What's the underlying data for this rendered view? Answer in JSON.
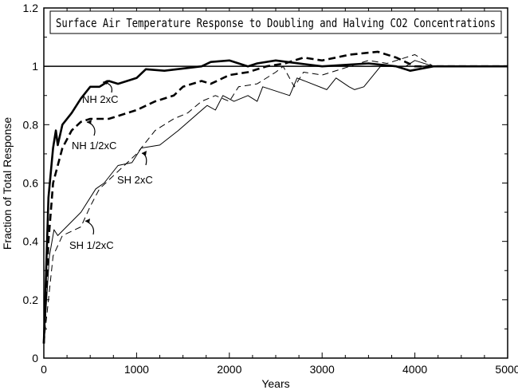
{
  "chart_data": {
    "type": "line",
    "title": "Surface Air Temperature Response to Doubling and Halving CO2 Concentrations",
    "xlabel": "Years",
    "ylabel": "Fraction of Total Response",
    "xlim": [
      0,
      5000
    ],
    "ylim": [
      0,
      1.2
    ],
    "xticks": [
      "0",
      "1000",
      "2000",
      "3000",
      "4000",
      "5000"
    ],
    "yticks": [
      "0",
      "0.2",
      "0.4",
      "0.6",
      "0.8",
      "1",
      "1.2"
    ],
    "reference_line": 1.0,
    "grid": false,
    "legend": "inline annotations",
    "series": [
      {
        "name": "NH 2xC",
        "style": "thick-solid",
        "x": [
          0,
          50,
          100,
          130,
          150,
          200,
          300,
          400,
          500,
          600,
          700,
          800,
          1000,
          1100,
          1300,
          1700,
          1800,
          2000,
          2200,
          2300,
          2500,
          3000,
          3500,
          3800,
          3950,
          4200,
          4600,
          5000
        ],
        "y": [
          0.05,
          0.55,
          0.72,
          0.78,
          0.73,
          0.8,
          0.84,
          0.89,
          0.93,
          0.93,
          0.95,
          0.94,
          0.96,
          0.99,
          0.985,
          1.0,
          1.015,
          1.02,
          1.0,
          1.01,
          1.02,
          1.0,
          1.01,
          1.0,
          0.985,
          1.0,
          1.0,
          1.0
        ]
      },
      {
        "name": "NH 1/2xC",
        "style": "thick-dashed",
        "x": [
          0,
          50,
          100,
          200,
          300,
          400,
          500,
          700,
          900,
          1000,
          1200,
          1400,
          1500,
          1700,
          1800,
          2000,
          2200,
          2400,
          2600,
          2800,
          3000,
          3300,
          3600,
          3800,
          4000,
          4500,
          5000
        ],
        "y": [
          0.05,
          0.4,
          0.6,
          0.72,
          0.78,
          0.81,
          0.82,
          0.82,
          0.84,
          0.85,
          0.88,
          0.9,
          0.93,
          0.95,
          0.94,
          0.97,
          0.98,
          1.0,
          1.01,
          1.03,
          1.02,
          1.04,
          1.05,
          1.03,
          1.0,
          1.0,
          1.0
        ]
      },
      {
        "name": "SH 2xC",
        "style": "thin-solid",
        "x": [
          0,
          60,
          110,
          150,
          400,
          560,
          650,
          800,
          950,
          1050,
          1250,
          1450,
          1760,
          1850,
          1930,
          2050,
          2200,
          2300,
          2360,
          2650,
          2730,
          3050,
          3150,
          3290,
          3350,
          3450,
          3630,
          3900,
          4000,
          4200,
          5000
        ],
        "y": [
          0.05,
          0.35,
          0.44,
          0.42,
          0.5,
          0.58,
          0.6,
          0.66,
          0.67,
          0.72,
          0.73,
          0.78,
          0.866,
          0.85,
          0.9,
          0.88,
          0.9,
          0.88,
          0.93,
          0.9,
          0.96,
          0.92,
          0.96,
          0.93,
          0.92,
          0.93,
          1.0,
          1.0,
          1.02,
          1.0,
          1.0
        ]
      },
      {
        "name": "SH 1/2xC",
        "style": "thin-dashed",
        "x": [
          0,
          100,
          200,
          400,
          500,
          600,
          800,
          1000,
          1200,
          1400,
          1550,
          1700,
          1850,
          2000,
          2100,
          2300,
          2500,
          2580,
          2700,
          2800,
          3000,
          3200,
          3500,
          3700,
          4000,
          4100,
          4200,
          5000
        ],
        "y": [
          0.05,
          0.35,
          0.42,
          0.45,
          0.52,
          0.58,
          0.64,
          0.7,
          0.78,
          0.82,
          0.84,
          0.88,
          0.9,
          0.88,
          0.93,
          0.94,
          0.98,
          1.0,
          0.93,
          0.98,
          0.97,
          0.99,
          1.02,
          1.01,
          1.04,
          1.02,
          1.0,
          1.0
        ]
      }
    ],
    "annotations": [
      {
        "text": "NH 2xC",
        "x": 1000,
        "y": 0.9
      },
      {
        "text": "NH 1/2xC",
        "x": 900,
        "y": 0.8
      },
      {
        "text": "SH 2xC",
        "x": 1700,
        "y": 0.6
      },
      {
        "text": "SH 1/2xC",
        "x": 1000,
        "y": 0.45
      }
    ]
  }
}
